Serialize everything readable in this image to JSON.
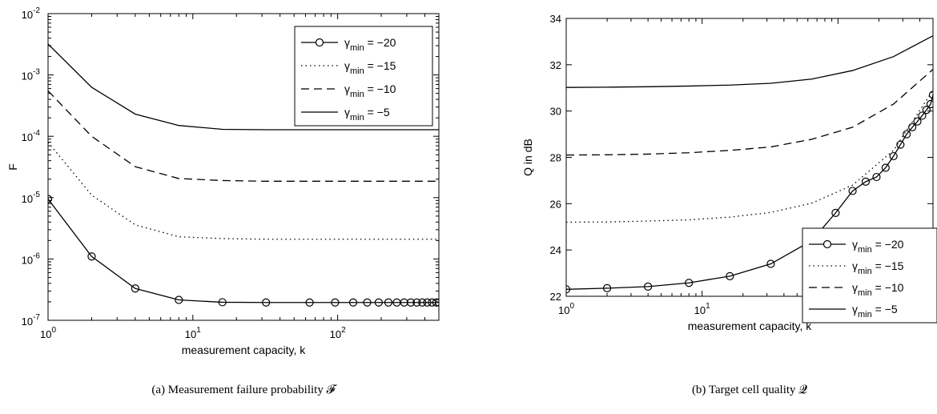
{
  "chart_data": [
    {
      "type": "line",
      "caption": "(a) Measurement failure probability 𝓕",
      "xlabel": "measurement capacity, k",
      "ylabel": "F",
      "xscale": "log",
      "yscale": "log",
      "xlim": [
        1,
        500
      ],
      "ylim": [
        1e-07,
        0.01
      ],
      "x_ticks": [
        {
          "value": 1,
          "base": "10",
          "exp": "0"
        },
        {
          "value": 10,
          "base": "10",
          "exp": "1"
        },
        {
          "value": 100,
          "base": "10",
          "exp": "2"
        }
      ],
      "y_ticks": [
        {
          "value": 1e-07,
          "base": "10",
          "exp": "-7"
        },
        {
          "value": 1e-06,
          "base": "10",
          "exp": "-6"
        },
        {
          "value": 1e-05,
          "base": "10",
          "exp": "-5"
        },
        {
          "value": 0.0001,
          "base": "10",
          "exp": "-4"
        },
        {
          "value": 0.001,
          "base": "10",
          "exp": "-3"
        },
        {
          "value": 0.01,
          "base": "10",
          "exp": "-2"
        }
      ],
      "legend_placement": "top-right",
      "series": [
        {
          "name": "γmin = −20",
          "name_base": "γ",
          "name_sub": "min",
          "name_rest": " = −20",
          "style": "solid",
          "marker": "circle",
          "x": [
            1,
            2,
            4,
            8,
            16,
            32,
            64,
            96,
            128,
            160,
            192,
            224,
            256,
            288,
            320,
            352,
            384,
            416,
            448,
            480,
            500
          ],
          "y": [
            9.5e-06,
            1.1e-06,
            3.3e-07,
            2.15e-07,
            1.97e-07,
            1.95e-07,
            1.95e-07,
            1.95e-07,
            1.95e-07,
            1.95e-07,
            1.95e-07,
            1.95e-07,
            1.95e-07,
            1.95e-07,
            1.95e-07,
            1.95e-07,
            1.95e-07,
            1.95e-07,
            1.95e-07,
            1.95e-07,
            1.95e-07
          ]
        },
        {
          "name": "γmin = −15",
          "name_base": "γ",
          "name_sub": "min",
          "name_rest": " = −15",
          "style": "dotted",
          "marker": "none",
          "x": [
            1,
            2,
            4,
            8,
            16,
            32,
            64,
            128,
            256,
            500
          ],
          "y": [
            8e-05,
            1.1e-05,
            3.6e-06,
            2.3e-06,
            2.15e-06,
            2.1e-06,
            2.1e-06,
            2.1e-06,
            2.1e-06,
            2.1e-06
          ]
        },
        {
          "name": "γmin = −10",
          "name_base": "γ",
          "name_sub": "min",
          "name_rest": " = −10",
          "style": "dashed",
          "marker": "none",
          "x": [
            1,
            2,
            4,
            8,
            16,
            32,
            64,
            128,
            256,
            500
          ],
          "y": [
            0.00055,
            0.0001,
            3.2e-05,
            2.05e-05,
            1.9e-05,
            1.85e-05,
            1.85e-05,
            1.85e-05,
            1.85e-05,
            1.85e-05
          ]
        },
        {
          "name": "γmin = −5",
          "name_base": "γ",
          "name_sub": "min",
          "name_rest": " = −5",
          "style": "solid",
          "marker": "none",
          "x": [
            1,
            2,
            4,
            8,
            16,
            32,
            64,
            128,
            256,
            500
          ],
          "y": [
            0.0032,
            0.00063,
            0.00023,
            0.00015,
            0.00013,
            0.000128,
            0.000128,
            0.000128,
            0.000128,
            0.000128
          ]
        }
      ]
    },
    {
      "type": "line",
      "caption": "(b) Target cell quality 𝓠",
      "xlabel": "measurement capacity, k",
      "ylabel": "Q in dB",
      "xscale": "log",
      "yscale": "linear",
      "xlim": [
        1,
        500
      ],
      "ylim": [
        22,
        34
      ],
      "x_ticks": [
        {
          "value": 1,
          "base": "10",
          "exp": "0"
        },
        {
          "value": 10,
          "base": "10",
          "exp": "1"
        },
        {
          "value": 100,
          "base": "10",
          "exp": "2"
        }
      ],
      "y_ticks": [
        {
          "value": 22,
          "label": "22"
        },
        {
          "value": 24,
          "label": "24"
        },
        {
          "value": 26,
          "label": "26"
        },
        {
          "value": 28,
          "label": "28"
        },
        {
          "value": 30,
          "label": "30"
        },
        {
          "value": 32,
          "label": "32"
        },
        {
          "value": 34,
          "label": "34"
        }
      ],
      "legend_placement": "bottom-right",
      "series": [
        {
          "name": "γmin = −20",
          "name_base": "γ",
          "name_sub": "min",
          "name_rest": " = −20",
          "style": "solid",
          "marker": "circle",
          "x": [
            1,
            2,
            4,
            8,
            16,
            32,
            64,
            96,
            128,
            160,
            192,
            224,
            256,
            288,
            320,
            352,
            384,
            416,
            448,
            480,
            500
          ],
          "y": [
            22.3,
            22.35,
            22.42,
            22.58,
            22.87,
            23.4,
            24.4,
            25.6,
            26.55,
            26.95,
            27.15,
            27.55,
            28.05,
            28.55,
            29.0,
            29.3,
            29.55,
            29.8,
            30.05,
            30.3,
            30.7
          ]
        },
        {
          "name": "γmin = −15",
          "name_base": "γ",
          "name_sub": "min",
          "name_rest": " = −15",
          "style": "dotted",
          "marker": "none",
          "x": [
            1,
            2,
            4,
            8,
            16,
            32,
            64,
            128,
            256,
            500
          ],
          "y": [
            25.2,
            25.21,
            25.25,
            25.3,
            25.42,
            25.62,
            26.02,
            26.8,
            28.3,
            30.9
          ]
        },
        {
          "name": "γmin = −10",
          "name_base": "γ",
          "name_sub": "min",
          "name_rest": " = −10",
          "style": "dashed",
          "marker": "none",
          "x": [
            1,
            2,
            4,
            8,
            16,
            32,
            64,
            128,
            256,
            500
          ],
          "y": [
            28.1,
            28.11,
            28.14,
            28.2,
            28.3,
            28.45,
            28.78,
            29.3,
            30.3,
            31.8
          ]
        },
        {
          "name": "γmin = −5",
          "name_base": "γ",
          "name_sub": "min",
          "name_rest": " = −5",
          "style": "solid",
          "marker": "none",
          "x": [
            1,
            2,
            4,
            8,
            16,
            32,
            64,
            128,
            256,
            500
          ],
          "y": [
            31.02,
            31.03,
            31.05,
            31.08,
            31.12,
            31.2,
            31.38,
            31.75,
            32.35,
            33.25
          ]
        }
      ]
    }
  ]
}
